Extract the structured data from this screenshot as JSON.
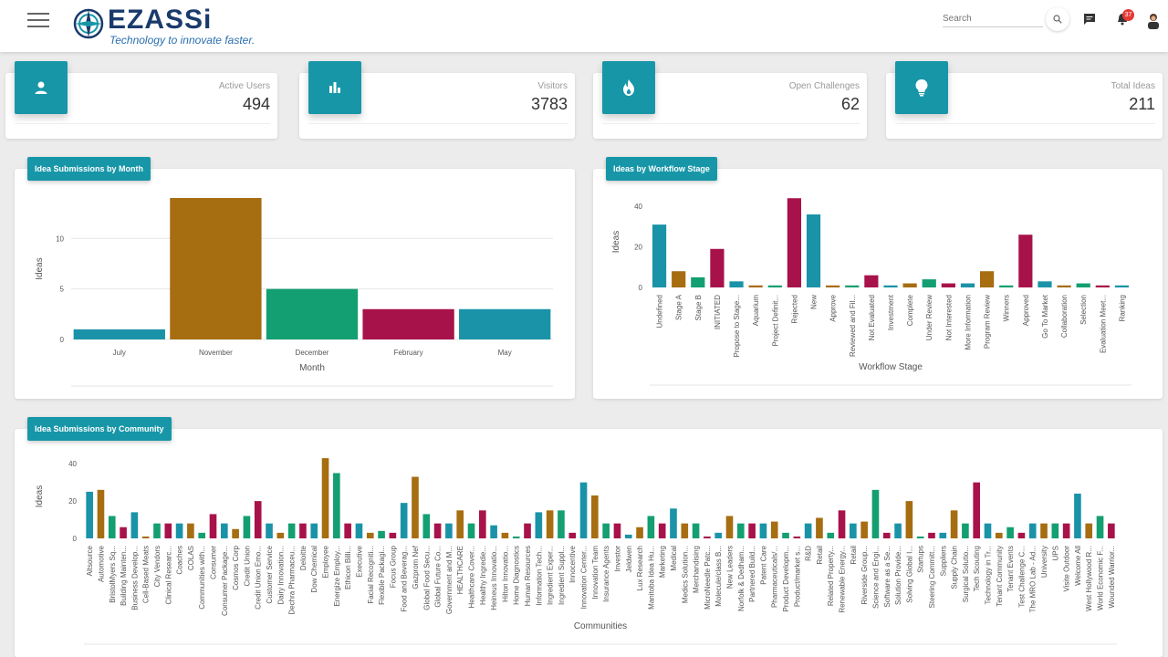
{
  "header": {
    "logo_text": "EZASSi",
    "logo_tagline": "Technology to innovate faster.",
    "search_placeholder": "Search",
    "notification_count": "37"
  },
  "stats": [
    {
      "label": "Active Users",
      "value": "494",
      "icon": "user-icon"
    },
    {
      "label": "Visitors",
      "value": "3783",
      "icon": "bar-chart-icon"
    },
    {
      "label": "Open Challenges",
      "value": "62",
      "icon": "flame-icon"
    },
    {
      "label": "Total Ideas",
      "value": "211",
      "icon": "lightbulb-icon"
    }
  ],
  "colors": {
    "accent": "#1796a8",
    "teal": "#1a93a8",
    "gold": "#a66d11",
    "green": "#139f71",
    "crimson": "#a8124a"
  },
  "chart_data": [
    {
      "type": "bar",
      "title": "Idea Submissions by Month",
      "xlabel": "Month",
      "ylabel": "Ideas",
      "ylim": [
        0,
        14
      ],
      "yticks": [
        0,
        5,
        10
      ],
      "categories": [
        "July",
        "November",
        "December",
        "February",
        "May"
      ],
      "values": [
        1,
        14,
        5,
        3,
        3
      ]
    },
    {
      "type": "bar",
      "title": "Ideas by Workflow Stage",
      "xlabel": "Workflow Stage",
      "ylabel": "Ideas",
      "ylim": [
        0,
        45
      ],
      "yticks": [
        0,
        20,
        40
      ],
      "categories": [
        "Undefined",
        "Stage A",
        "Stage B",
        "INITIATED",
        "Propose to Stage...",
        "Aquarium",
        "Project Definit...",
        "Rejected",
        "New",
        "Approve",
        "Reviewed and Fil...",
        "Not Evaluated",
        "Investment",
        "Complete",
        "Under Review",
        "Not Interested",
        "More Information",
        "Program Review",
        "Winners",
        "Approved",
        "Go To Market",
        "Collaboration",
        "Selection",
        "Evaluation Meet...",
        "Ranking"
      ],
      "values": [
        31,
        8,
        5,
        19,
        3,
        1,
        1,
        44,
        36,
        1,
        1,
        6,
        1,
        2,
        4,
        2,
        2,
        8,
        1,
        26,
        3,
        1,
        2,
        1,
        1
      ]
    },
    {
      "type": "bar",
      "title": "Idea Submissions by Community",
      "xlabel": "Communities",
      "ylabel": "Ideas",
      "ylim": [
        0,
        45
      ],
      "yticks": [
        0,
        20,
        40
      ],
      "categories": [
        "Altsource",
        "Automotive",
        "BristolMyers Sq...",
        "Building Mainten...",
        "Business Develop...",
        "Cell-Based Meats",
        "City Vendors",
        "Clinical Researc...",
        "Coaches",
        "COLAS",
        "Communities with...",
        "Consumer",
        "Consumer Package...",
        "Cosmos Corp",
        "Credit Union",
        "Credit Union Emo...",
        "Customer Service",
        "Dairy Innovation...",
        "Dechra Pharmaceu...",
        "Deloitte",
        "Dow Chemical",
        "Employee",
        "Energize Employ...",
        "Ethicon Billi...",
        "Executive",
        "Facial Recogniti...",
        "Flexible Packagi...",
        "Focus Group",
        "Food and Beverag...",
        "Gazprom Nef",
        "Global Food Secu...",
        "Global Future Co...",
        "Government and M...",
        "HEALTHCARE",
        "Healthcare Cover...",
        "Healthy Ingredie...",
        "Heineus Innovatio...",
        "Hilton Innovatio...",
        "Home Diagnostics",
        "Human Resources",
        "Information Tech...",
        "Ingredient Exper...",
        "Ingredient Suppl...",
        "Innocentive",
        "Innovation Center...",
        "Innovation Team",
        "Insurance Agents",
        "Investor",
        "Jeldwen",
        "Lux Research",
        "Manitoba Idea Hu...",
        "Marketing",
        "Medical",
        "Medics Solution...",
        "Merchandising",
        "MicroNeedle Patc...",
        "Molecule/class B...",
        "New Leaders",
        "Norfolk & Dedham...",
        "Partnered Build...",
        "Patent Care",
        "Pharmaceuticals/...",
        "Product Developm...",
        "Product/market s...",
        "R&D",
        "Retail",
        "Related Property...",
        "Renewable Energy...",
        "Retail",
        "Riverside Group...",
        "Science and Engi...",
        "Software as a Se...",
        "Solution Provide...",
        "Solving Global I...",
        "Startups",
        "Steering Committ...",
        "Suppliers",
        "Supply Chain",
        "Surgical Solutio...",
        "Tech Scouting",
        "Technology in Tr...",
        "Tenant Community",
        "Tenant Events",
        "Test Challenge C...",
        "The MRO Lab - Ad...",
        "University",
        "UPS",
        "Visite Outdoor",
        "Welcome All",
        "West Hollywood R...",
        "World Economic F...",
        "Wounded Warrior..."
      ],
      "values": [
        25,
        26,
        12,
        6,
        14,
        1,
        8,
        8,
        8,
        8,
        3,
        13,
        8,
        5,
        12,
        20,
        8,
        3,
        8,
        8,
        8,
        43,
        35,
        8,
        8,
        3,
        4,
        3,
        19,
        33,
        13,
        8,
        8,
        15,
        8,
        15,
        7,
        3,
        1,
        8,
        14,
        15,
        15,
        3,
        30,
        23,
        8,
        8,
        2,
        6,
        12,
        8,
        16,
        8,
        8,
        1,
        3,
        12,
        8,
        8,
        8,
        9,
        3,
        1,
        8,
        11,
        3,
        15,
        8,
        9,
        26,
        3,
        8,
        20,
        1,
        3,
        3,
        15,
        8,
        30,
        8,
        3,
        6,
        3,
        8,
        8,
        8,
        8,
        24,
        8,
        12,
        8
      ]
    }
  ]
}
